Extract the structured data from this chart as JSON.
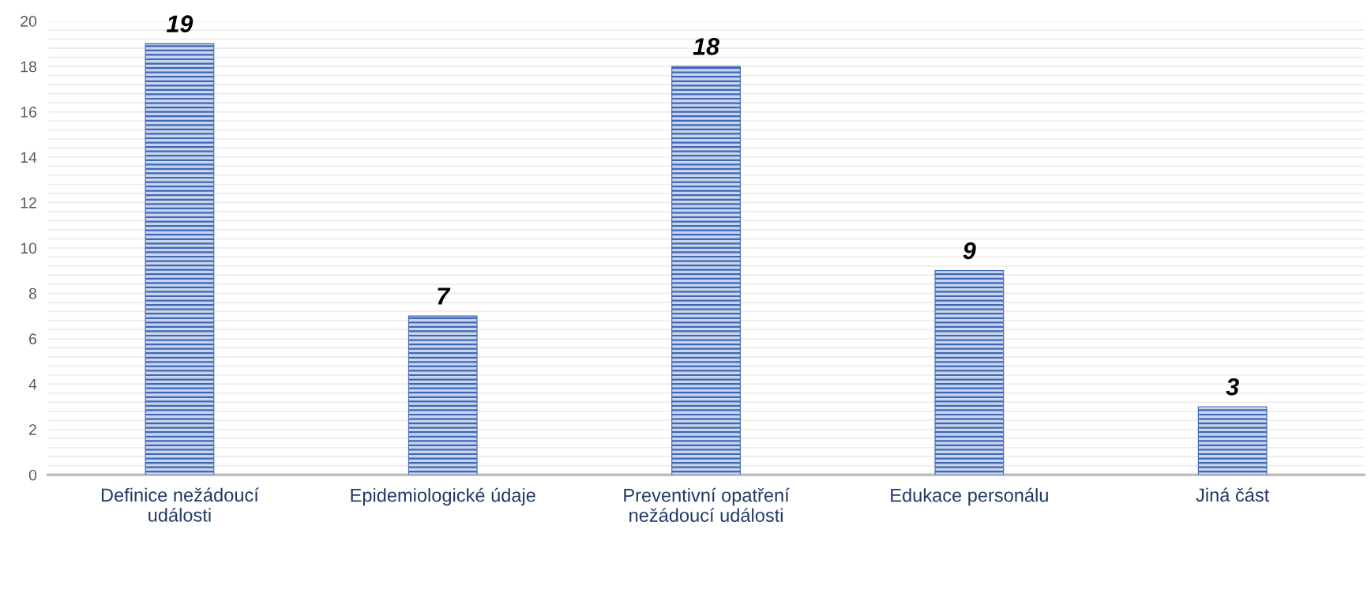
{
  "chart_data": {
    "type": "bar",
    "categories": [
      "Definice nežádoucí události",
      "Epidemiologické údaje",
      "Preventivní opatření nežádoucí události",
      "Edukace personálu",
      "Jiná část"
    ],
    "values": [
      19,
      7,
      18,
      9,
      3
    ],
    "color": "#3f67b5",
    "ylim": [
      0,
      20
    ],
    "yticks": [
      0,
      2,
      4,
      6,
      8,
      10,
      12,
      14,
      16,
      18,
      20
    ],
    "grid": "y",
    "data_labels": true
  }
}
